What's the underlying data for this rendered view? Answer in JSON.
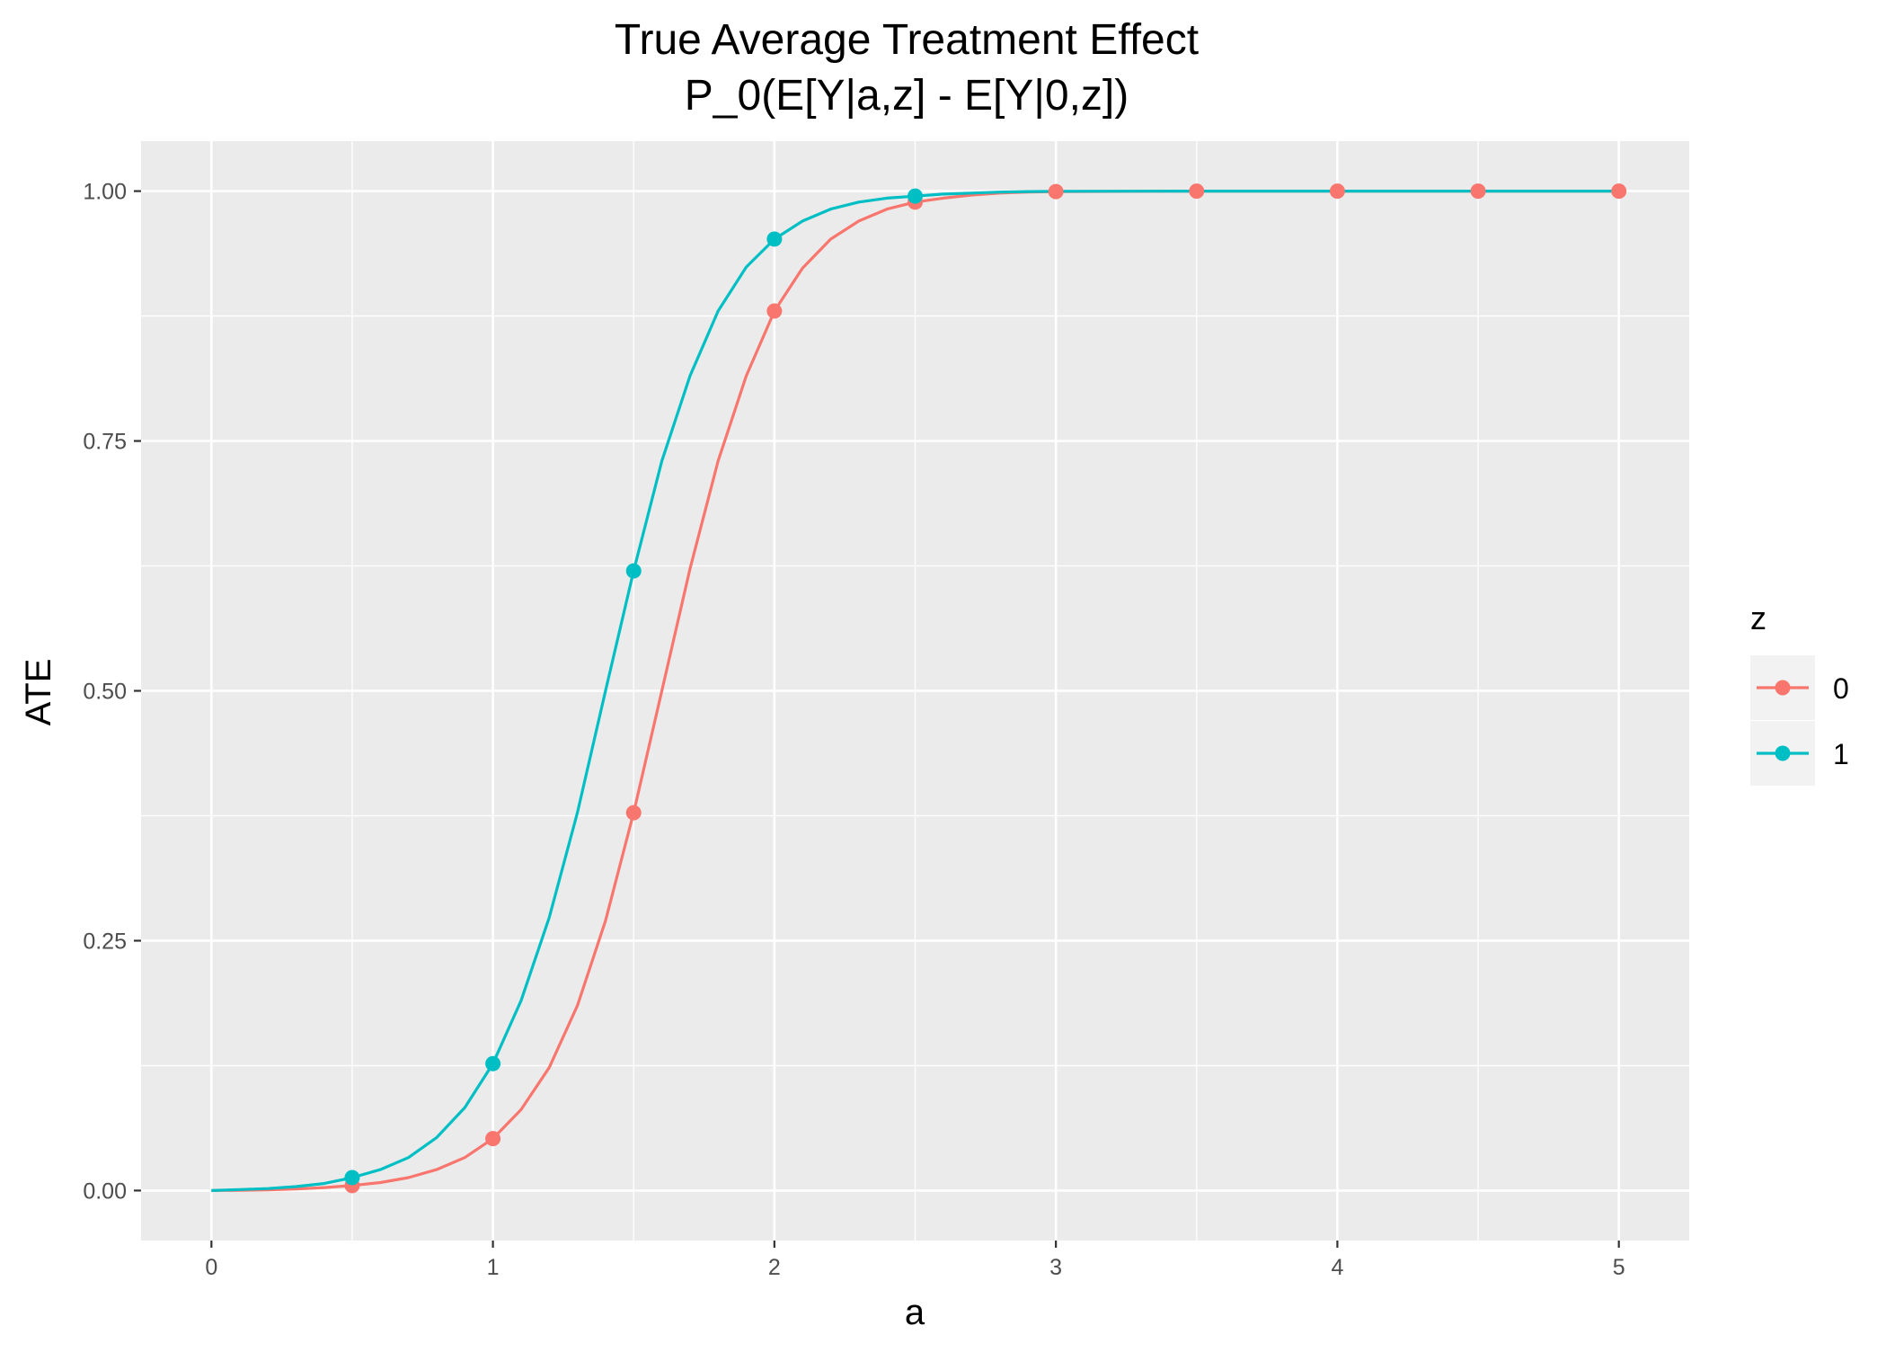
{
  "chart_data": {
    "type": "line",
    "title": "True Average Treatment Effect",
    "subtitle": "P_0(E[Y|a,z] - E[Y|0,z])",
    "xlabel": "a",
    "ylabel": "ATE",
    "xlim": [
      -0.25,
      5.25
    ],
    "ylim": [
      -0.05,
      1.05
    ],
    "x_ticks": [
      0,
      1,
      2,
      3,
      4,
      5
    ],
    "x_tick_labels": [
      "0",
      "1",
      "2",
      "3",
      "4",
      "5"
    ],
    "y_ticks": [
      0,
      0.25,
      0.5,
      0.75,
      1
    ],
    "y_tick_labels": [
      "0.00",
      "0.25",
      "0.50",
      "0.75",
      "1.00"
    ],
    "grid": true,
    "legend_title": "z",
    "legend_position": "right",
    "x": [
      0,
      0.1,
      0.2,
      0.3,
      0.4,
      0.5,
      0.6,
      0.7,
      0.8,
      0.9,
      1.0,
      1.1,
      1.2,
      1.3,
      1.4,
      1.5,
      1.6,
      1.7,
      1.8,
      1.9,
      2.0,
      2.1,
      2.2,
      2.3,
      2.4,
      2.5,
      2.6,
      2.7,
      2.8,
      2.9,
      3.0,
      3.5,
      4.0,
      4.5,
      5.0
    ],
    "series": [
      {
        "name": "0",
        "color": "#F8766D",
        "values": [
          0,
          0.0003,
          0.0007,
          0.0015,
          0.003,
          0.005,
          0.008,
          0.013,
          0.021,
          0.033,
          0.052,
          0.081,
          0.123,
          0.185,
          0.27,
          0.378,
          0.5,
          0.622,
          0.73,
          0.815,
          0.88,
          0.923,
          0.952,
          0.97,
          0.982,
          0.989,
          0.993,
          0.996,
          0.998,
          0.999,
          0.9995,
          1.0,
          1.0,
          1.0,
          1.0
        ],
        "points_x": [
          0.5,
          1,
          1.5,
          2,
          2.5,
          3,
          3.5,
          4,
          4.5,
          5
        ],
        "points_y": [
          0.005,
          0.052,
          0.378,
          0.88,
          0.989,
          0.9995,
          1.0,
          1.0,
          1.0,
          1.0
        ]
      },
      {
        "name": "1",
        "color": "#00BFC4",
        "values": [
          0,
          0.001,
          0.002,
          0.004,
          0.007,
          0.013,
          0.021,
          0.033,
          0.053,
          0.083,
          0.127,
          0.19,
          0.273,
          0.378,
          0.5,
          0.62,
          0.73,
          0.815,
          0.88,
          0.924,
          0.952,
          0.97,
          0.982,
          0.989,
          0.993,
          0.995,
          0.997,
          0.998,
          0.999,
          0.9995,
          0.9998,
          1.0,
          1.0,
          1.0,
          1.0
        ],
        "points_x": [
          0.5,
          1,
          1.5,
          2,
          2.5
        ],
        "points_y": [
          0.013,
          0.127,
          0.62,
          0.952,
          0.995
        ]
      }
    ]
  }
}
